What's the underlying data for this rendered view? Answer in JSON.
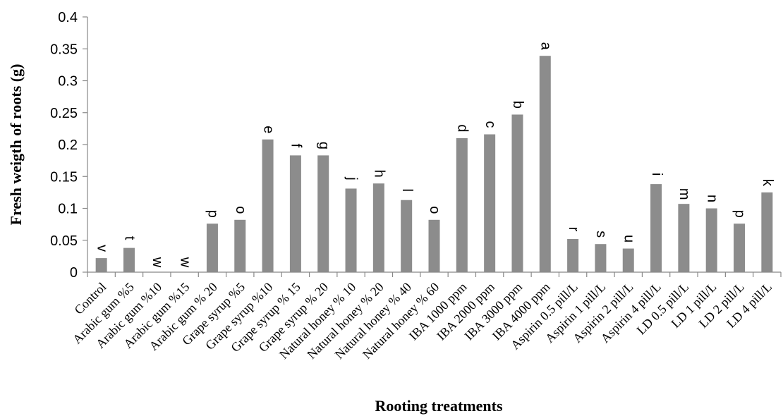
{
  "chart_data": {
    "type": "bar",
    "title": "",
    "xlabel": "Rooting treatments",
    "ylabel": "Fresh weigth of roots (g)",
    "ylim": [
      0,
      0.4
    ],
    "yticks": [
      "0",
      "0.05",
      "0.1",
      "0.15",
      "0.2",
      "0.25",
      "0.3",
      "0.35",
      "0.4"
    ],
    "grid": false,
    "legend": "none",
    "bar_color": "#8c8c8c",
    "categories": [
      "Control",
      "Arabic gum %5",
      "Arabic gum %10",
      "Arabic gum %15",
      "Arabic gum % 20",
      "Grape syrup %5",
      "Grape syrup %10",
      "Grape syrup % 15",
      "Grape syrup % 20",
      "Natural honey % 10",
      "Natural honey % 20",
      "Natural honey % 40",
      "Natural honey % 60",
      "IBA 1000 ppm",
      "IBA 2000 ppm",
      "IBA 3000 ppm",
      "IBA 4000 ppm",
      "Aspirin  0.5 pill/L",
      "Aspirin 1 pill/L",
      "Aspirin 2 pill/L",
      "Aspirin 4 pill/L",
      "LD  0.5 pill/L",
      "LD 1 pill/L",
      "LD 2 pill/L",
      "LD 4 pill/L"
    ],
    "values": [
      0.022,
      0.038,
      0.0,
      0.0,
      0.076,
      0.082,
      0.208,
      0.183,
      0.183,
      0.131,
      0.139,
      0.113,
      0.082,
      0.21,
      0.216,
      0.247,
      0.339,
      0.052,
      0.044,
      0.037,
      0.138,
      0.107,
      0.1,
      0.076,
      0.125
    ],
    "letters": [
      "v",
      "t",
      "w",
      "w",
      "p",
      "o",
      "e",
      "f",
      "g",
      "j",
      "h",
      "l",
      "o",
      "d",
      "c",
      "b",
      "a",
      "r",
      "s",
      "u",
      "i",
      "m",
      "n",
      "p",
      "k"
    ]
  }
}
